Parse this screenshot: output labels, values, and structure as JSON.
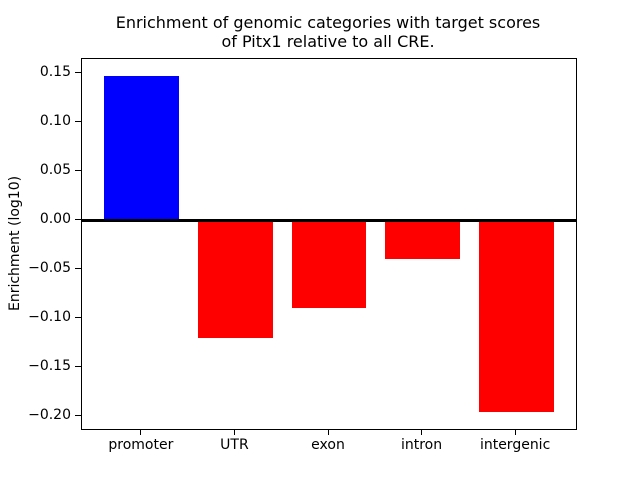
{
  "chart_data": {
    "type": "bar",
    "title": "Enrichment of genomic categories with target scores of Pitx1 relative to all CRE.",
    "title_lines": [
      "Enrichment of genomic categories with target scores",
      "of Pitx1 relative to all CRE."
    ],
    "xlabel": "",
    "ylabel": "Enrichment (log10)",
    "categories": [
      "promoter",
      "UTR",
      "exon",
      "intron",
      "intergenic"
    ],
    "values": [
      0.147,
      -0.12,
      -0.089,
      -0.039,
      -0.195
    ],
    "bar_colors": [
      "#0000ff",
      "#ff0000",
      "#ff0000",
      "#ff0000",
      "#ff0000"
    ],
    "bar_width": 0.8,
    "xlim": [
      -0.64,
      4.64
    ],
    "ylim": [
      -0.2125,
      0.1645
    ],
    "yticks": [
      0.15,
      0.1,
      0.05,
      0.0,
      -0.05,
      -0.1,
      -0.15,
      -0.2
    ],
    "ytick_labels": [
      "0.15",
      "0.10",
      "0.05",
      "0.00",
      "−0.05",
      "−0.10",
      "−0.15",
      "−0.20"
    ],
    "zero_line": true,
    "grid": false,
    "legend": null,
    "frame_color": "#000000",
    "background_color": "#ffffff",
    "positive_color": "#0000ff",
    "negative_color": "#ff0000"
  }
}
